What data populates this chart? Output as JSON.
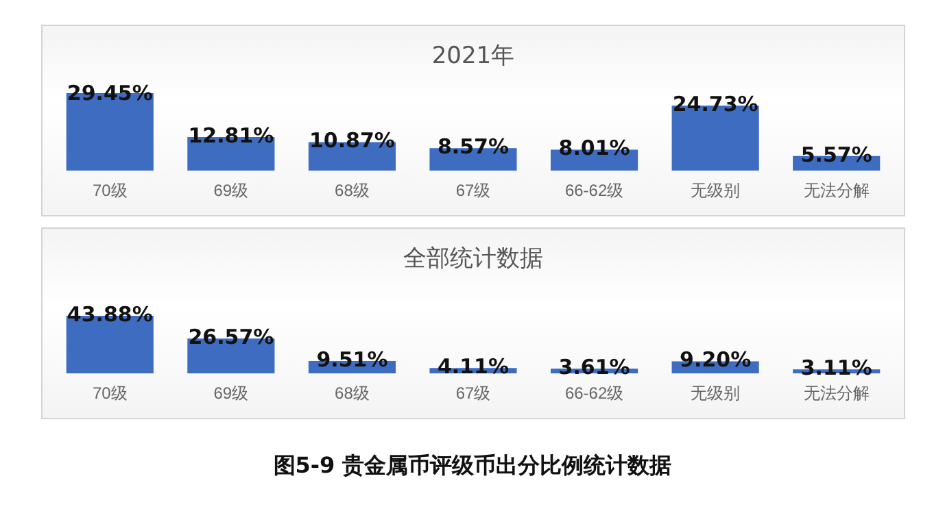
{
  "chart_data": [
    {
      "type": "bar",
      "title": "2021年",
      "categories": [
        "70级",
        "69级",
        "68级",
        "67级",
        "66-62级",
        "无级别",
        "无法分解"
      ],
      "values": [
        29.45,
        12.81,
        10.87,
        8.57,
        8.01,
        24.73,
        5.57
      ],
      "value_labels": [
        "29.45%",
        "12.81%",
        "10.87%",
        "8.57%",
        "8.01%",
        "24.73%",
        "5.57%"
      ],
      "color": "#3d6cc0",
      "grid": false,
      "legend": false
    },
    {
      "type": "bar",
      "title": "全部统计数据",
      "categories": [
        "70级",
        "69级",
        "68级",
        "67级",
        "66-62级",
        "无级别",
        "无法分解"
      ],
      "values": [
        43.88,
        26.57,
        9.51,
        4.11,
        3.61,
        9.2,
        3.11
      ],
      "value_labels": [
        "43.88%",
        "26.57%",
        "9.51%",
        "4.11%",
        "3.61%",
        "9.20%",
        "3.11%"
      ],
      "color": "#3d6cc0",
      "grid": false,
      "legend": false,
      "annotations": [
        "图5-9  贵金属币评级币出分比例统计数据"
      ]
    }
  ]
}
